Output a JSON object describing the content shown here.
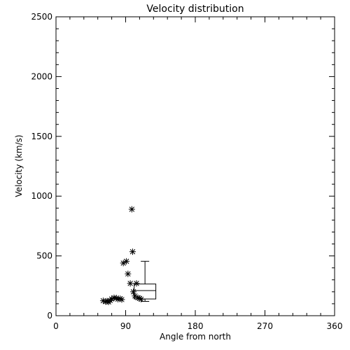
{
  "chart_data": {
    "type": "scatter",
    "title": "Velocity distribution",
    "xlabel": "Angle from north",
    "ylabel": "Velocity (km/s)",
    "xlim": [
      0,
      360
    ],
    "ylim": [
      0,
      2500
    ],
    "xticks": [
      0,
      90,
      180,
      270,
      360
    ],
    "yticks": [
      0,
      500,
      1000,
      1500,
      2000,
      2500
    ],
    "grid": false,
    "marker": "asterisk",
    "points": [
      {
        "x": 61,
        "y": 125
      },
      {
        "x": 64,
        "y": 118
      },
      {
        "x": 66,
        "y": 122
      },
      {
        "x": 68,
        "y": 115
      },
      {
        "x": 70,
        "y": 127
      },
      {
        "x": 72,
        "y": 140
      },
      {
        "x": 75,
        "y": 150
      },
      {
        "x": 78,
        "y": 148
      },
      {
        "x": 80,
        "y": 138
      },
      {
        "x": 83,
        "y": 142
      },
      {
        "x": 85,
        "y": 135
      },
      {
        "x": 87,
        "y": 440
      },
      {
        "x": 91,
        "y": 455
      },
      {
        "x": 93,
        "y": 350
      },
      {
        "x": 96,
        "y": 270
      },
      {
        "x": 98,
        "y": 890
      },
      {
        "x": 99,
        "y": 535
      },
      {
        "x": 100,
        "y": 200
      },
      {
        "x": 102,
        "y": 165
      },
      {
        "x": 104,
        "y": 270
      },
      {
        "x": 106,
        "y": 150
      },
      {
        "x": 108,
        "y": 145
      },
      {
        "x": 110,
        "y": 138
      }
    ],
    "boxplot": {
      "x_range": [
        101,
        129
      ],
      "whisker_low": 120,
      "q1": 140,
      "median": 210,
      "q3": 265,
      "whisker_high": 455
    }
  }
}
